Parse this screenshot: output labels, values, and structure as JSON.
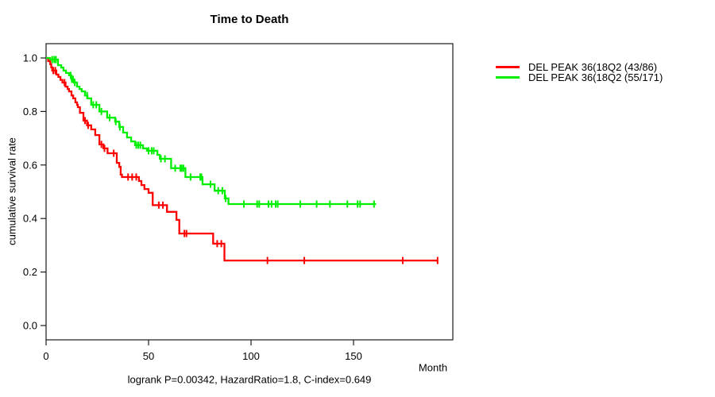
{
  "title": "Time to Death",
  "y_axis": {
    "label": "cumulative survival rate",
    "tick_labels": [
      "1.0",
      "0.8",
      "0.6",
      "0.4",
      "0.2",
      "0.0"
    ],
    "tick_values": [
      1.0,
      0.8,
      0.6,
      0.4,
      0.2,
      0.0
    ]
  },
  "x_axis": {
    "label": "Month",
    "tick_labels": [
      "0",
      "50",
      "100",
      "150"
    ],
    "tick_values": [
      0,
      50,
      100,
      150
    ]
  },
  "footer": "logrank P=0.00342, HazardRatio=1.8, C-index=0.649",
  "colors": {
    "series_red": "#ff0000",
    "series_green": "#00ee00",
    "axis": "#1a1a1a",
    "background": "#ffffff"
  },
  "chart_data": {
    "type": "line",
    "subtype": "kaplan-meier-step",
    "title": "Time to Death",
    "xlabel": "Month",
    "ylabel": "cumulative survival rate",
    "xlim": [
      0,
      198
    ],
    "ylim": [
      0.0,
      1.0
    ],
    "grid": false,
    "legend_position": "right-outside-top",
    "annotation": "logrank P=0.00342, HazardRatio=1.8, C-index=0.649",
    "series": [
      {
        "name": "DEL PEAK 36(18Q2 (43/86)",
        "color": "#ff0000",
        "steps": [
          [
            0,
            1.0
          ],
          [
            1,
            0.988
          ],
          [
            2,
            0.977
          ],
          [
            2.5,
            0.965
          ],
          [
            3,
            0.953
          ],
          [
            5,
            0.938
          ],
          [
            6,
            0.929
          ],
          [
            7,
            0.918
          ],
          [
            8,
            0.908
          ],
          [
            9.5,
            0.893
          ],
          [
            10.5,
            0.884
          ],
          [
            11.2,
            0.875
          ],
          [
            12.4,
            0.86
          ],
          [
            13.2,
            0.849
          ],
          [
            14.3,
            0.834
          ],
          [
            15.1,
            0.825
          ],
          [
            15.5,
            0.816
          ],
          [
            16.5,
            0.795
          ],
          [
            18.2,
            0.766
          ],
          [
            20,
            0.748
          ],
          [
            22,
            0.733
          ],
          [
            24,
            0.712
          ],
          [
            26,
            0.677
          ],
          [
            28,
            0.662
          ],
          [
            30,
            0.644
          ],
          [
            34.5,
            0.608
          ],
          [
            35.7,
            0.593
          ],
          [
            36.4,
            0.564
          ],
          [
            37,
            0.555
          ],
          [
            45.3,
            0.54
          ],
          [
            46.5,
            0.525
          ],
          [
            48,
            0.51
          ],
          [
            50,
            0.496
          ],
          [
            52,
            0.45
          ],
          [
            59,
            0.425
          ],
          [
            63.6,
            0.395
          ],
          [
            65,
            0.344
          ],
          [
            81.5,
            0.306
          ],
          [
            87,
            0.243
          ]
        ],
        "end_month": 191,
        "censor_months": [
          3.5,
          4.5,
          9,
          19,
          20.5,
          27,
          28.5,
          33,
          40,
          42,
          44,
          55,
          57,
          67.5,
          68.5,
          83.5,
          85.5,
          108,
          126,
          174,
          191
        ]
      },
      {
        "name": "DEL PEAK 36(18Q2 (55/171)",
        "color": "#00ee00",
        "steps": [
          [
            0,
            1.0
          ],
          [
            2,
            0.994
          ],
          [
            5.8,
            0.973
          ],
          [
            7.4,
            0.964
          ],
          [
            8.5,
            0.953
          ],
          [
            9.7,
            0.944
          ],
          [
            11.2,
            0.935
          ],
          [
            12.4,
            0.92
          ],
          [
            13.6,
            0.908
          ],
          [
            15.1,
            0.893
          ],
          [
            16.3,
            0.884
          ],
          [
            17.4,
            0.875
          ],
          [
            19,
            0.86
          ],
          [
            20.2,
            0.849
          ],
          [
            22,
            0.825
          ],
          [
            26,
            0.8
          ],
          [
            29.8,
            0.777
          ],
          [
            33.7,
            0.762
          ],
          [
            35.7,
            0.742
          ],
          [
            37.6,
            0.721
          ],
          [
            39.5,
            0.703
          ],
          [
            41.5,
            0.688
          ],
          [
            43.4,
            0.674
          ],
          [
            47.3,
            0.662
          ],
          [
            49.2,
            0.653
          ],
          [
            54.3,
            0.638
          ],
          [
            55.5,
            0.623
          ],
          [
            61,
            0.588
          ],
          [
            68,
            0.555
          ],
          [
            76.3,
            0.528
          ],
          [
            82.2,
            0.504
          ],
          [
            87.2,
            0.475
          ],
          [
            89,
            0.454
          ]
        ],
        "end_month": 161,
        "censor_months": [
          3,
          4,
          4.8,
          12,
          12.6,
          13.2,
          14,
          20,
          23,
          24.5,
          27,
          31,
          34,
          36,
          44,
          45,
          46,
          50,
          51.5,
          52.5,
          56,
          58,
          63,
          65.5,
          66.2,
          67,
          70.5,
          75.2,
          75.8,
          80.2,
          84,
          86,
          87.6,
          96.5,
          103,
          104,
          108.5,
          110,
          112,
          113,
          124,
          132,
          138.5,
          147,
          152,
          153.2,
          160
        ]
      }
    ]
  }
}
